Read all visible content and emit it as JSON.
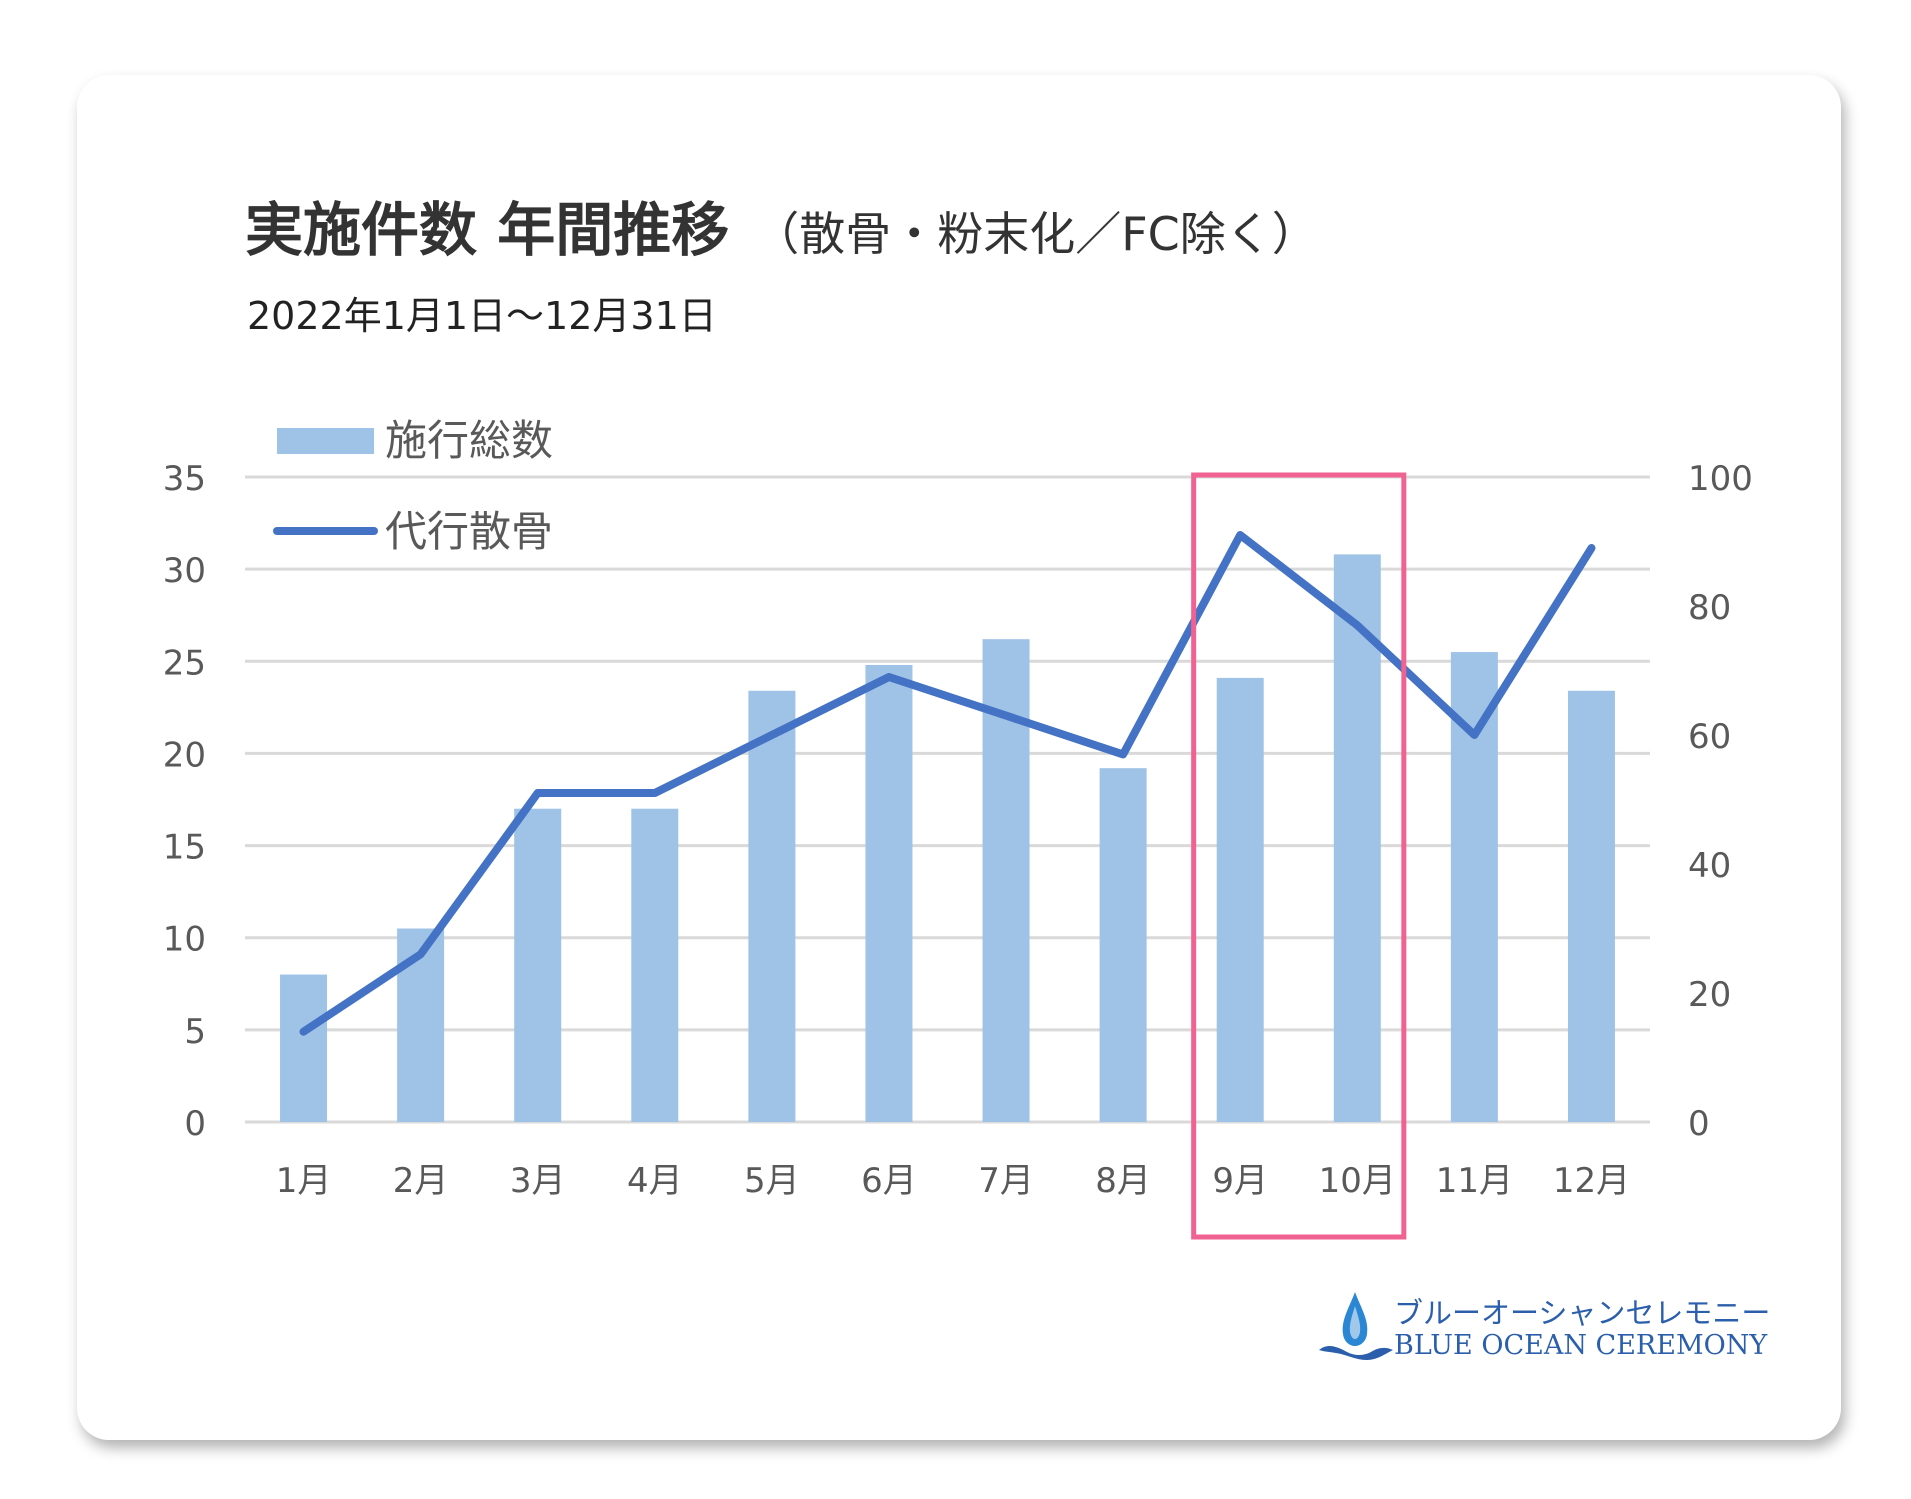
{
  "title": "実施件数 年間推移",
  "title_note": "（散骨・粉末化／FC除く）",
  "subtitle": "2022年1月1日～12月31日",
  "logo": {
    "jp": "ブルーオーシャンセレモニー",
    "en": "BLUE OCEAN CEREMONY"
  },
  "colors": {
    "bar": "#9fc3e6",
    "line": "#4472c4",
    "highlight": "#f06292",
    "grid": "#d9d9d9",
    "axis_text": "#595959"
  },
  "chart_data": {
    "type": "bar",
    "categories": [
      "1月",
      "2月",
      "3月",
      "4月",
      "5月",
      "6月",
      "7月",
      "8月",
      "9月",
      "10月",
      "11月",
      "12月"
    ],
    "series": [
      {
        "name": "施行総数",
        "type": "bar",
        "axis": "left",
        "values": [
          8,
          10.5,
          17,
          17,
          23.4,
          24.8,
          26.2,
          19.2,
          24.1,
          30.8,
          25.5,
          23.4
        ]
      },
      {
        "name": "代行散骨",
        "type": "line",
        "axis": "right",
        "values": [
          14,
          26,
          51,
          51,
          60,
          69,
          63,
          57,
          91,
          77,
          60,
          89
        ]
      }
    ],
    "y_left": {
      "min": 0,
      "max": 35,
      "ticks": [
        0,
        5,
        10,
        15,
        20,
        25,
        30,
        35
      ]
    },
    "y_right": {
      "min": 0,
      "max": 100,
      "ticks": [
        0,
        20,
        40,
        60,
        80,
        100
      ]
    },
    "grid": true,
    "legend": "top-left",
    "highlight_categories": [
      "9月",
      "10月"
    ]
  }
}
